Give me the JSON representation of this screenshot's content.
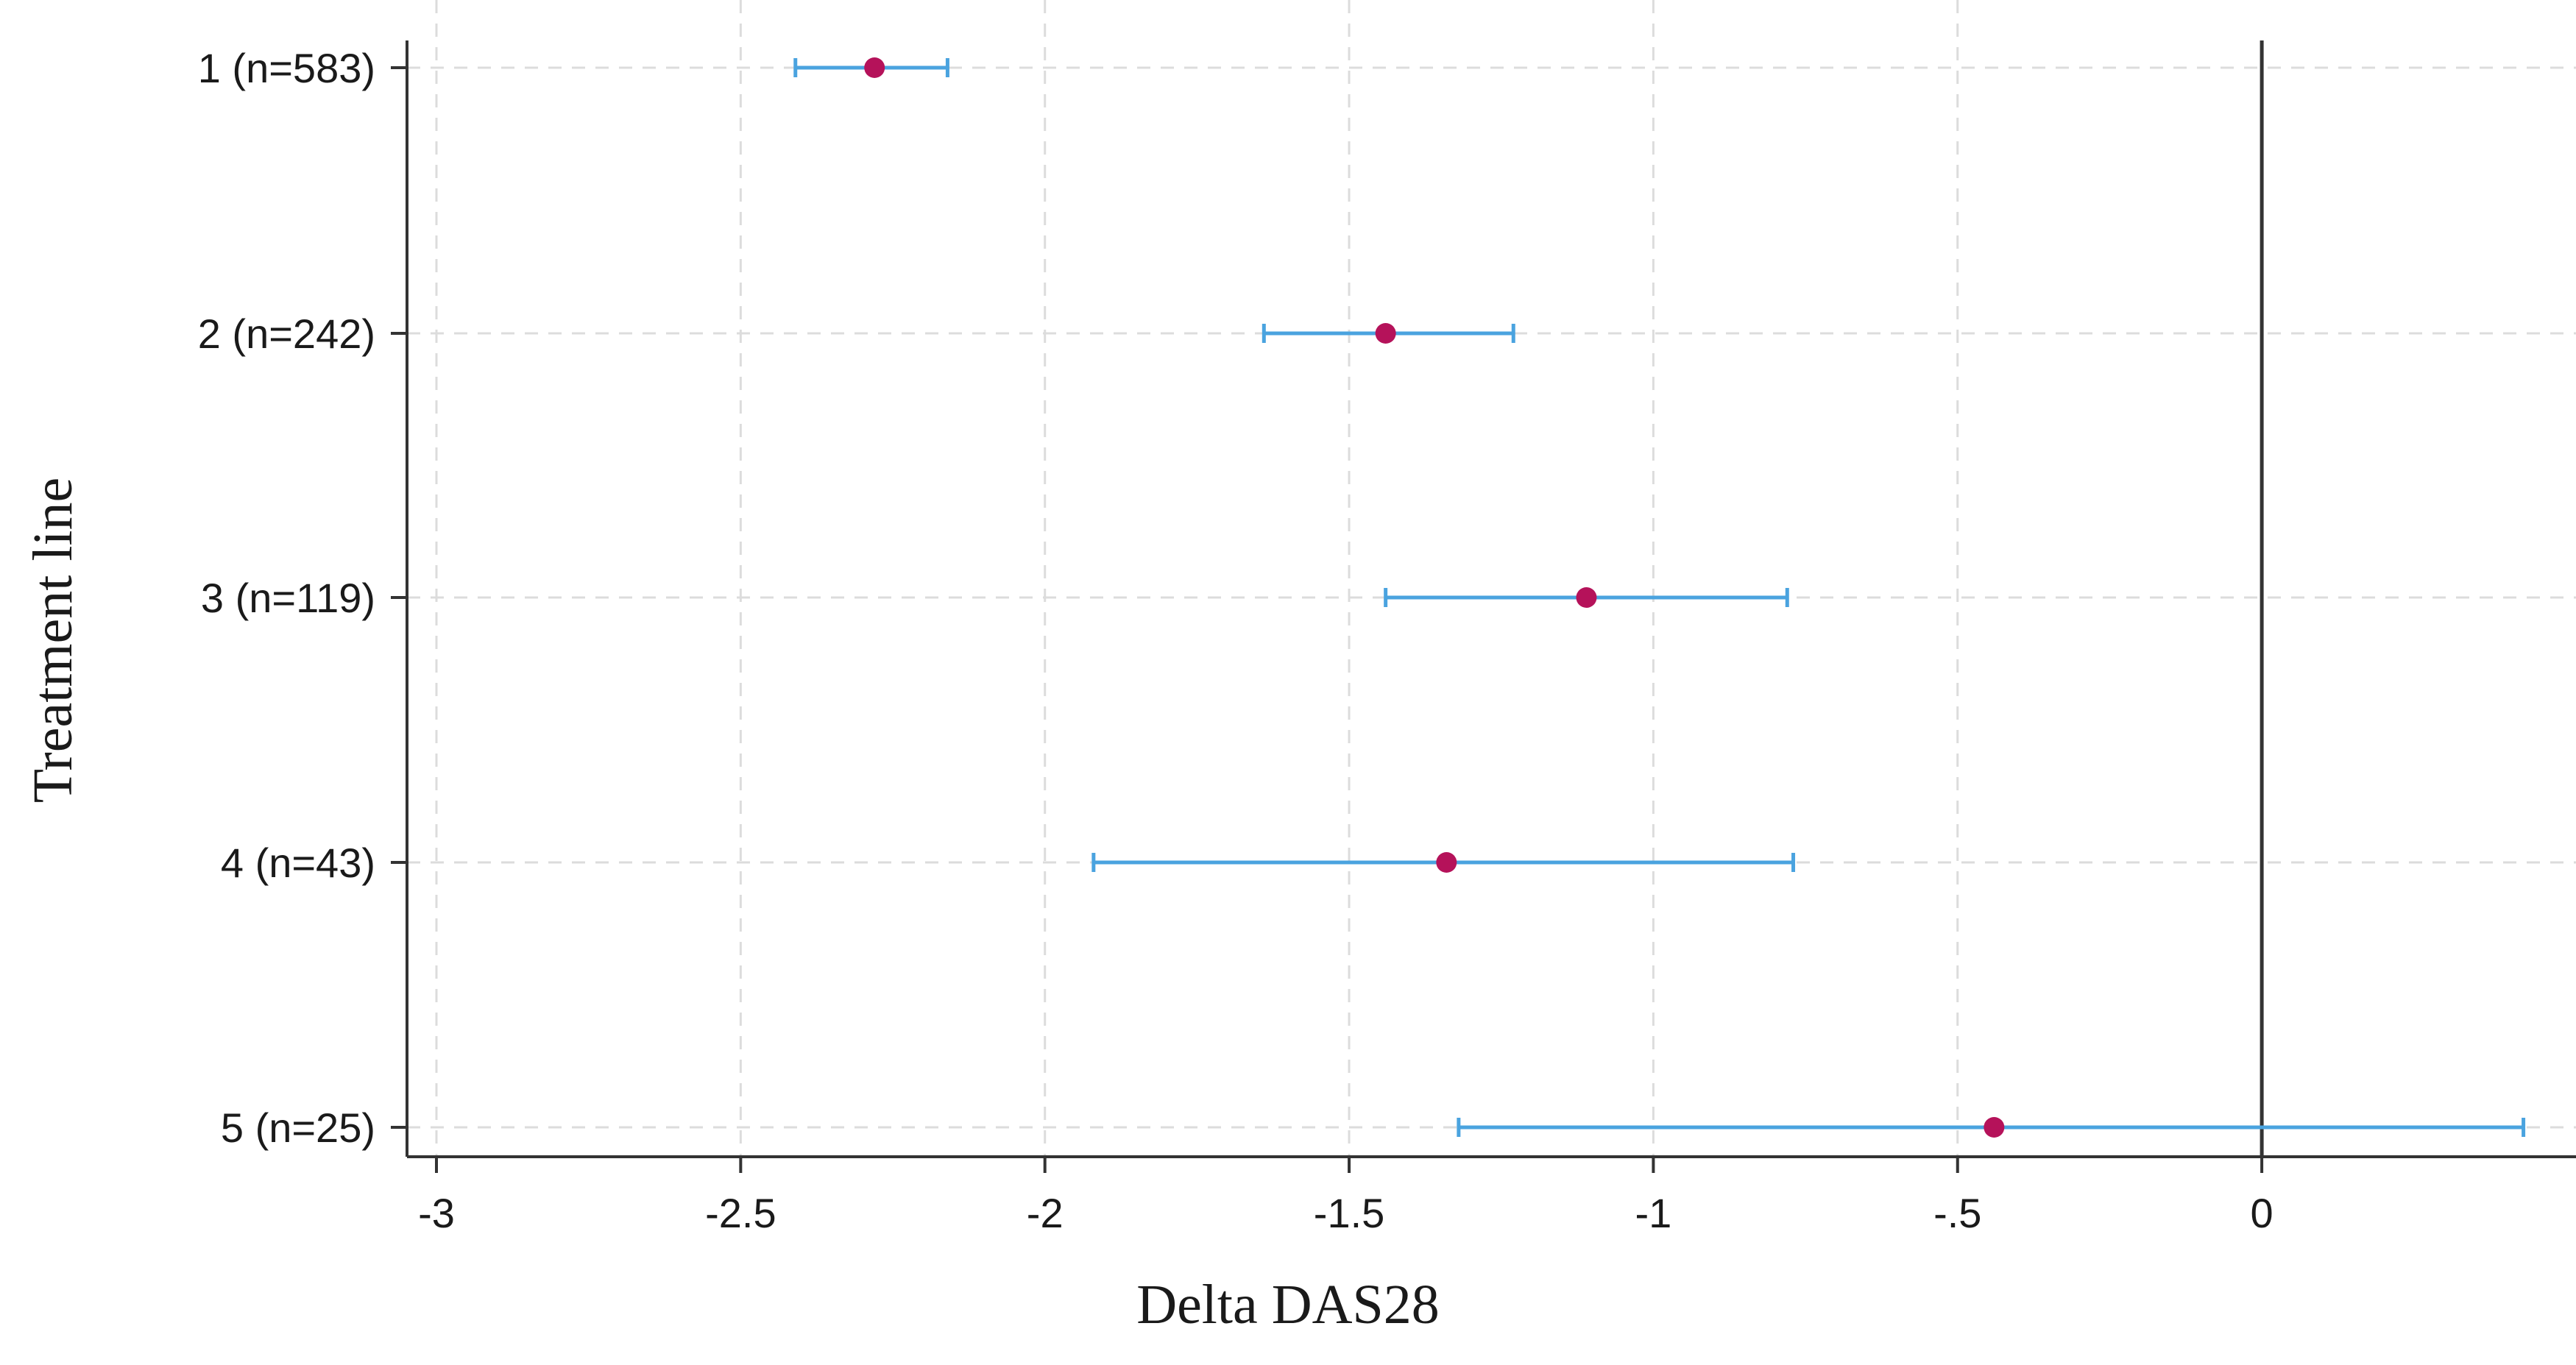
{
  "chart_data": {
    "type": "scatter",
    "title": "",
    "xlabel": "Delta DAS28",
    "ylabel": "Treatment line",
    "xlim": [
      -3.05,
      0.45
    ],
    "x_ticks": [
      -3,
      -2.5,
      -2,
      -1.5,
      -1,
      -0.5,
      0
    ],
    "x_tick_labels": [
      "-3",
      "-2.5",
      "-2",
      "-1.5",
      "-1",
      "-.5",
      "0"
    ],
    "categories": [
      "1 (n=583)",
      "2 (n=242)",
      "3 (n=119)",
      "4 (n=43)",
      "5 (n=25)"
    ],
    "estimates": [
      -2.28,
      -1.44,
      -1.11,
      -1.34,
      -0.44
    ],
    "ci_lower": [
      -2.41,
      -1.64,
      -1.44,
      -1.92,
      -1.32
    ],
    "ci_upper": [
      -2.16,
      -1.23,
      -0.78,
      -0.77,
      0.43
    ],
    "reference_line_x": 0,
    "grid": true,
    "grid_style": "dashed",
    "legend": "none",
    "colors": {
      "point": "#b5125a",
      "error_bar": "#4aa3df",
      "reference_line": "#333333",
      "axis": "#333333",
      "grid": "#dcdcdc"
    }
  }
}
